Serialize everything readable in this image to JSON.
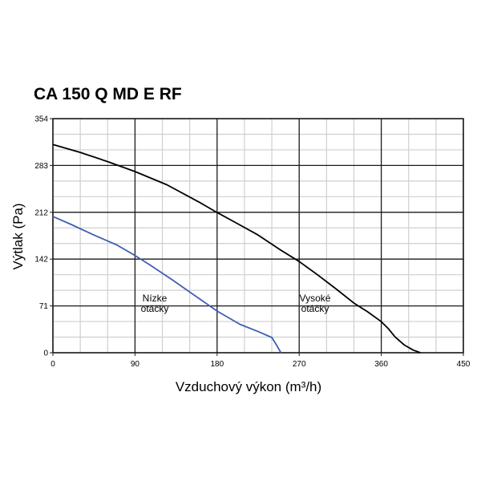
{
  "chart_data": {
    "type": "line",
    "title": "CA 150 Q MD E RF",
    "xlabel": "Vzduchový výkon (m³/h)",
    "ylabel": "Výtlak (Pa)",
    "xlim": [
      0,
      450
    ],
    "ylim": [
      0,
      354
    ],
    "x_ticks": [
      "0",
      "90",
      "180",
      "270",
      "360",
      "450"
    ],
    "y_ticks": [
      "0",
      "71",
      "142",
      "212",
      "283",
      "354"
    ],
    "grid": true,
    "series": [
      {
        "name": "Vysoké otáčky",
        "color": "#000000",
        "points": [
          [
            0,
            315
          ],
          [
            30,
            303
          ],
          [
            60,
            289
          ],
          [
            90,
            274
          ],
          [
            125,
            254
          ],
          [
            160,
            228
          ],
          [
            180,
            212
          ],
          [
            200,
            197
          ],
          [
            225,
            178
          ],
          [
            250,
            155
          ],
          [
            270,
            138
          ],
          [
            290,
            118
          ],
          [
            310,
            97
          ],
          [
            330,
            75
          ],
          [
            345,
            62
          ],
          [
            360,
            47
          ],
          [
            368,
            36
          ],
          [
            375,
            24
          ],
          [
            385,
            12
          ],
          [
            395,
            4
          ],
          [
            403,
            0
          ]
        ]
      },
      {
        "name": "Nízke otáčky",
        "color": "#3f5fb3",
        "points": [
          [
            0,
            206
          ],
          [
            20,
            194
          ],
          [
            45,
            178
          ],
          [
            70,
            163
          ],
          [
            90,
            147
          ],
          [
            105,
            134
          ],
          [
            130,
            111
          ],
          [
            155,
            87
          ],
          [
            180,
            63
          ],
          [
            205,
            43
          ],
          [
            225,
            32
          ],
          [
            240,
            23
          ],
          [
            245,
            12
          ],
          [
            250,
            0
          ]
        ]
      }
    ],
    "annotations": [
      {
        "text_lines": [
          "Nízke",
          "otáčky"
        ],
        "series": "Nízke otáčky"
      },
      {
        "text_lines": [
          "Vysoké",
          "otáčky"
        ],
        "series": "Vysoké otáčky"
      }
    ]
  }
}
